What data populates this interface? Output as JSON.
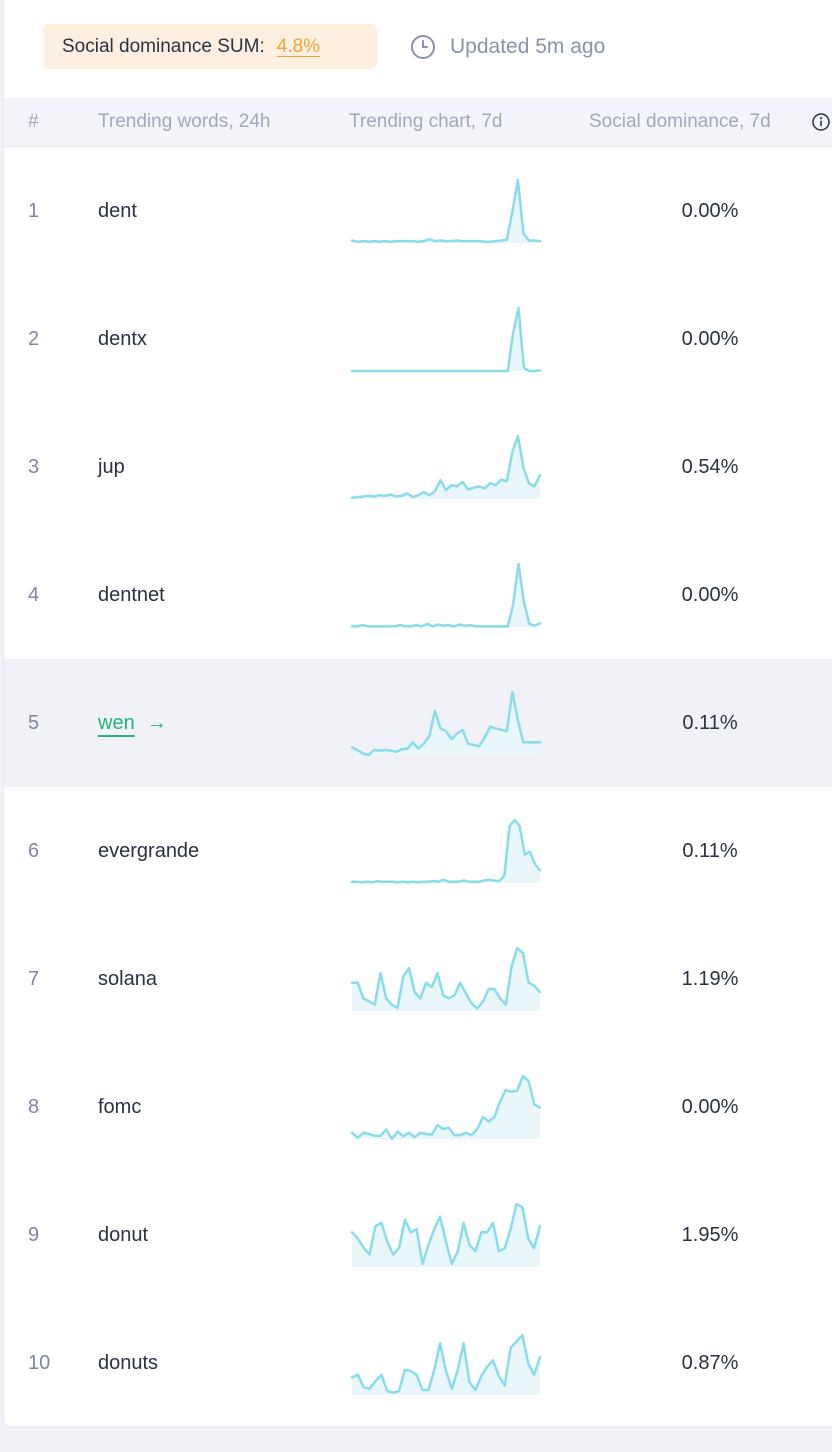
{
  "header": {
    "sum_label": "Social dominance SUM:",
    "sum_value": "4.8%",
    "updated_text": "Updated 5m ago",
    "clock_icon": "clock-icon"
  },
  "table": {
    "columns": {
      "rank": "#",
      "words": "Trending words, 24h",
      "chart": "Trending chart, 7d",
      "dominance": "Social dominance, 7d"
    },
    "info_icon": "info-icon",
    "rows": [
      {
        "rank": "1",
        "word": "dent",
        "dominance": "0.00%",
        "highlight": false,
        "link": false,
        "spark": [
          0.04,
          0.02,
          0.03,
          0.02,
          0.03,
          0.02,
          0.03,
          0.02,
          0.03,
          0.03,
          0.03,
          0.03,
          0.02,
          0.03,
          0.06,
          0.03,
          0.04,
          0.03,
          0.03,
          0.04,
          0.03,
          0.03,
          0.03,
          0.03,
          0.02,
          0.02,
          0.03,
          0.04,
          0.05,
          0.5,
          1.0,
          0.15,
          0.04,
          0.04,
          0.03
        ]
      },
      {
        "rank": "2",
        "word": "dentx",
        "dominance": "0.00%",
        "highlight": false,
        "link": false,
        "spark": [
          0,
          0,
          0,
          0,
          0,
          0,
          0,
          0,
          0,
          0,
          0,
          0,
          0,
          0,
          0,
          0,
          0,
          0,
          0,
          0,
          0,
          0,
          0,
          0,
          0,
          0,
          0,
          0,
          0,
          0,
          0.6,
          1.0,
          0.05,
          0,
          0,
          0.01
        ]
      },
      {
        "rank": "3",
        "word": "jup",
        "dominance": "0.54%",
        "highlight": false,
        "link": false,
        "spark": [
          0.02,
          0.03,
          0.04,
          0.05,
          0.04,
          0.06,
          0.05,
          0.07,
          0.04,
          0.05,
          0.09,
          0.03,
          0.06,
          0.11,
          0.06,
          0.12,
          0.3,
          0.14,
          0.22,
          0.2,
          0.27,
          0.15,
          0.18,
          0.2,
          0.17,
          0.25,
          0.22,
          0.31,
          0.28,
          0.75,
          1.0,
          0.5,
          0.25,
          0.2,
          0.38
        ]
      },
      {
        "rank": "4",
        "word": "dentnet",
        "dominance": "0.00%",
        "highlight": false,
        "link": false,
        "spark": [
          0.01,
          0.01,
          0.03,
          0.01,
          0.01,
          0.01,
          0.01,
          0.01,
          0.01,
          0.03,
          0.01,
          0.01,
          0.03,
          0.01,
          0.05,
          0.01,
          0.04,
          0.02,
          0.03,
          0.01,
          0.04,
          0.02,
          0.03,
          0.01,
          0.01,
          0.01,
          0.01,
          0.01,
          0.01,
          0.01,
          0.35,
          1.0,
          0.4,
          0.05,
          0.02,
          0.06
        ]
      },
      {
        "rank": "5",
        "word": "wen",
        "dominance": "0.11%",
        "highlight": true,
        "link": true,
        "spark": [
          0.12,
          0.08,
          0.02,
          0.0,
          0.08,
          0.07,
          0.08,
          0.07,
          0.05,
          0.09,
          0.1,
          0.2,
          0.1,
          0.18,
          0.3,
          0.7,
          0.42,
          0.38,
          0.25,
          0.34,
          0.4,
          0.18,
          0.16,
          0.14,
          0.28,
          0.45,
          0.42,
          0.4,
          0.38,
          1.0,
          0.55,
          0.2,
          0.2,
          0.2,
          0.2
        ]
      },
      {
        "rank": "6",
        "word": "evergrande",
        "dominance": "0.11%",
        "highlight": false,
        "link": false,
        "spark": [
          0.02,
          0.02,
          0.01,
          0.02,
          0.01,
          0.03,
          0.02,
          0.02,
          0.02,
          0.01,
          0.02,
          0.01,
          0.02,
          0.01,
          0.02,
          0.02,
          0.03,
          0.02,
          0.05,
          0.02,
          0.02,
          0.02,
          0.04,
          0.02,
          0.02,
          0.02,
          0.04,
          0.05,
          0.04,
          0.03,
          0.12,
          0.9,
          1.0,
          0.9,
          0.45,
          0.5,
          0.3,
          0.2
        ]
      },
      {
        "rank": "7",
        "word": "solana",
        "dominance": "1.19%",
        "highlight": false,
        "link": false,
        "spark": [
          0.45,
          0.45,
          0.2,
          0.15,
          0.1,
          0.6,
          0.2,
          0.1,
          0.05,
          0.55,
          0.68,
          0.3,
          0.2,
          0.45,
          0.38,
          0.6,
          0.25,
          0.2,
          0.25,
          0.45,
          0.28,
          0.12,
          0.04,
          0.15,
          0.35,
          0.35,
          0.2,
          0.1,
          0.7,
          1.0,
          0.92,
          0.45,
          0.4,
          0.3
        ]
      },
      {
        "rank": "8",
        "word": "fomc",
        "dominance": "0.00%",
        "highlight": false,
        "link": false,
        "spark": [
          0.1,
          0.02,
          0.1,
          0.08,
          0.05,
          0.05,
          0.15,
          0.0,
          0.12,
          0.04,
          0.1,
          0.03,
          0.1,
          0.08,
          0.07,
          0.22,
          0.16,
          0.18,
          0.06,
          0.06,
          0.1,
          0.06,
          0.16,
          0.35,
          0.28,
          0.35,
          0.6,
          0.78,
          0.75,
          0.77,
          1.0,
          0.92,
          0.55,
          0.5
        ]
      },
      {
        "rank": "9",
        "word": "donut",
        "dominance": "1.95%",
        "highlight": false,
        "link": false,
        "spark": [
          0.55,
          0.45,
          0.3,
          0.2,
          0.65,
          0.7,
          0.4,
          0.2,
          0.3,
          0.75,
          0.55,
          0.6,
          0.05,
          0.35,
          0.6,
          0.8,
          0.4,
          0.05,
          0.25,
          0.7,
          0.35,
          0.25,
          0.55,
          0.55,
          0.7,
          0.25,
          0.3,
          0.6,
          1.0,
          0.95,
          0.45,
          0.3,
          0.65
        ]
      },
      {
        "rank": "10",
        "word": "donuts",
        "dominance": "0.87%",
        "highlight": false,
        "link": false,
        "spark": [
          0.28,
          0.32,
          0.12,
          0.1,
          0.22,
          0.32,
          0.06,
          0.04,
          0.06,
          0.4,
          0.38,
          0.32,
          0.08,
          0.08,
          0.4,
          0.82,
          0.38,
          0.1,
          0.4,
          0.82,
          0.2,
          0.08,
          0.3,
          0.45,
          0.55,
          0.3,
          0.15,
          0.75,
          0.85,
          0.95,
          0.5,
          0.32,
          0.6
        ]
      }
    ]
  },
  "colors": {
    "sparkline": "#89dcea",
    "sparkline_fill": "#e9f7fb",
    "accent_orange": "#f2a23a",
    "link_green": "#26b27c"
  }
}
